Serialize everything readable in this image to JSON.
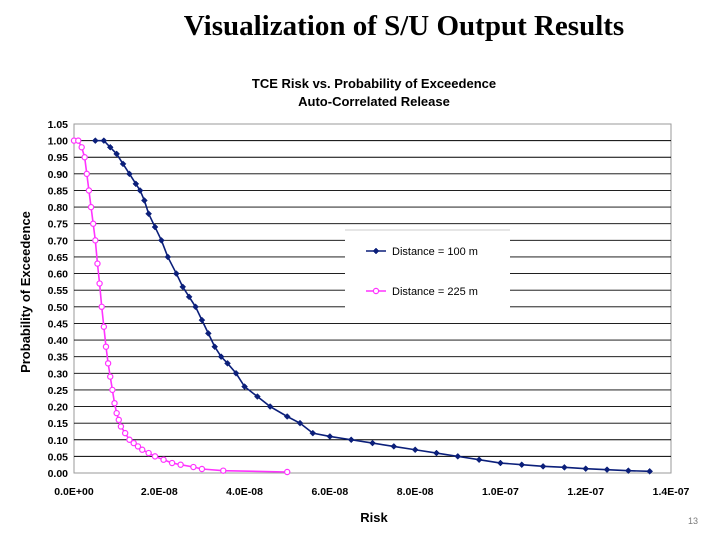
{
  "slide": {
    "title": "Visualization of S/U Output Results",
    "page_number": "13"
  },
  "colors": {
    "series_1": "#0b1f7a",
    "series_2": "#ff33ff",
    "grid": "#000000",
    "plot_border": "#9a9a9a"
  },
  "chart_data": {
    "type": "scatter",
    "title": "TCE Risk vs. Probability of Exceedence",
    "subtitle": "Auto-Correlated Release",
    "xlabel": "Risk",
    "ylabel": "Probability of Exceedence",
    "xlim": [
      0,
      1.4e-07
    ],
    "ylim": [
      0,
      1.05
    ],
    "x_ticks": [
      "0.0E+00",
      "2.0E-08",
      "4.0E-08",
      "6.0E-08",
      "8.0E-08",
      "1.0E-07",
      "1.2E-07",
      "1.4E-07"
    ],
    "y_ticks": [
      "0.00",
      "0.05",
      "0.10",
      "0.15",
      "0.20",
      "0.25",
      "0.30",
      "0.35",
      "0.40",
      "0.45",
      "0.50",
      "0.55",
      "0.60",
      "0.65",
      "0.70",
      "0.75",
      "0.80",
      "0.85",
      "0.90",
      "0.95",
      "1.00",
      "1.05"
    ],
    "grid": "horizontal",
    "legend_position": "center-right",
    "series": [
      {
        "name": "Distance = 100 m",
        "marker": "filled-diamond",
        "x": [
          5e-09,
          7e-09,
          8.5e-09,
          1e-08,
          1.15e-08,
          1.3e-08,
          1.45e-08,
          1.55e-08,
          1.65e-08,
          1.75e-08,
          1.9e-08,
          2.05e-08,
          2.2e-08,
          2.4e-08,
          2.55e-08,
          2.7e-08,
          2.85e-08,
          3e-08,
          3.15e-08,
          3.3e-08,
          3.45e-08,
          3.6e-08,
          3.8e-08,
          4e-08,
          4.3e-08,
          4.6e-08,
          5e-08,
          5.3e-08,
          5.6e-08,
          6e-08,
          6.5e-08,
          7e-08,
          7.5e-08,
          8e-08,
          8.5e-08,
          9e-08,
          9.5e-08,
          1e-07,
          1.05e-07,
          1.1e-07,
          1.15e-07,
          1.2e-07,
          1.25e-07,
          1.3e-07,
          1.35e-07
        ],
        "y": [
          1.0,
          1.0,
          0.98,
          0.96,
          0.93,
          0.9,
          0.87,
          0.85,
          0.82,
          0.78,
          0.74,
          0.7,
          0.65,
          0.6,
          0.56,
          0.53,
          0.5,
          0.46,
          0.42,
          0.38,
          0.35,
          0.33,
          0.3,
          0.26,
          0.23,
          0.2,
          0.17,
          0.15,
          0.12,
          0.11,
          0.1,
          0.09,
          0.08,
          0.07,
          0.06,
          0.05,
          0.04,
          0.03,
          0.025,
          0.02,
          0.017,
          0.013,
          0.01,
          0.007,
          0.005
        ]
      },
      {
        "name": "Distance = 225 m",
        "marker": "open-circle",
        "x": [
          0.0,
          1e-09,
          1.8e-09,
          2.5e-09,
          3e-09,
          3.5e-09,
          4e-09,
          4.5e-09,
          5e-09,
          5.5e-09,
          6e-09,
          6.5e-09,
          7e-09,
          7.5e-09,
          8e-09,
          8.5e-09,
          9e-09,
          9.5e-09,
          1e-08,
          1.05e-08,
          1.1e-08,
          1.2e-08,
          1.3e-08,
          1.4e-08,
          1.5e-08,
          1.6e-08,
          1.75e-08,
          1.9e-08,
          2.1e-08,
          2.3e-08,
          2.5e-08,
          2.8e-08,
          3e-08,
          3.5e-08,
          5e-08
        ],
        "y": [
          1.0,
          1.0,
          0.98,
          0.95,
          0.9,
          0.85,
          0.8,
          0.75,
          0.7,
          0.63,
          0.57,
          0.5,
          0.44,
          0.38,
          0.33,
          0.29,
          0.25,
          0.21,
          0.18,
          0.16,
          0.14,
          0.12,
          0.1,
          0.09,
          0.08,
          0.07,
          0.06,
          0.05,
          0.04,
          0.03,
          0.025,
          0.018,
          0.012,
          0.007,
          0.003
        ]
      }
    ]
  }
}
